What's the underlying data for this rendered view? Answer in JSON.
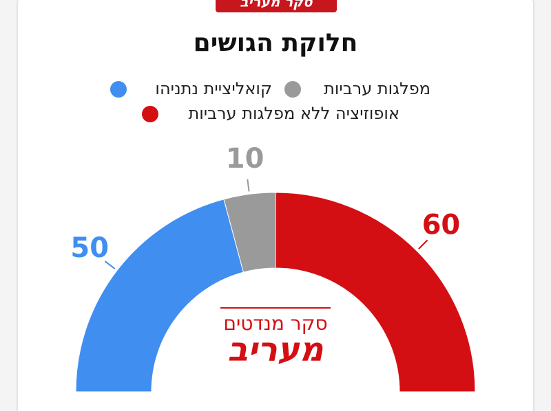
{
  "header": {
    "tab": "סקר מעריב"
  },
  "chart_data": {
    "type": "semicircle_donut",
    "title": "חלוקת הגושים",
    "categories": [
      "קואליציית נתניהו",
      "מפלגות ערביות",
      "אופוזיציה ללא מפלגות ערביות"
    ],
    "values": [
      50,
      10,
      60
    ],
    "colors": [
      "#3f8ef0",
      "#9a9a9a",
      "#d40f14"
    ]
  },
  "logo": {
    "subtitle": "סקר מנדטים",
    "name": "מעריב"
  }
}
